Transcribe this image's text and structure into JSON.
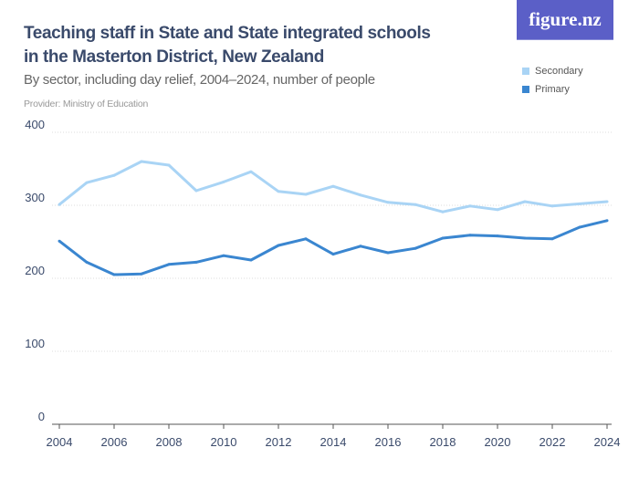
{
  "header": {
    "title": "Teaching staff in State and State integrated schools in the Masterton District, New Zealand",
    "subtitle": "By sector, including day relief, 2004–2024, number of people",
    "provider": "Provider: Ministry of Education",
    "logo": "figure.nz"
  },
  "chart_data": {
    "type": "line",
    "title": "Teaching staff in State and State integrated schools in the Masterton District, New Zealand",
    "x": [
      2004,
      2005,
      2006,
      2007,
      2008,
      2009,
      2010,
      2011,
      2012,
      2013,
      2014,
      2015,
      2016,
      2017,
      2018,
      2019,
      2020,
      2021,
      2022,
      2023,
      2024
    ],
    "xticks": [
      "2004",
      "2006",
      "2008",
      "2010",
      "2012",
      "2014",
      "2016",
      "2018",
      "2020",
      "2022",
      "2024"
    ],
    "yticks": [
      "0",
      "100",
      "200",
      "300",
      "400"
    ],
    "ylim": [
      0,
      400
    ],
    "grid": true,
    "legend_position": "top-right",
    "series": [
      {
        "name": "Secondary",
        "color": "#a9d4f5",
        "values": [
          301,
          331,
          341,
          360,
          355,
          320,
          332,
          346,
          319,
          315,
          326,
          314,
          304,
          301,
          291,
          299,
          294,
          305,
          299,
          302,
          305
        ]
      },
      {
        "name": "Primary",
        "color": "#3a86d0",
        "values": [
          251,
          222,
          205,
          206,
          219,
          222,
          231,
          225,
          245,
          254,
          233,
          244,
          235,
          241,
          255,
          259,
          258,
          255,
          254,
          270,
          279
        ]
      }
    ]
  }
}
